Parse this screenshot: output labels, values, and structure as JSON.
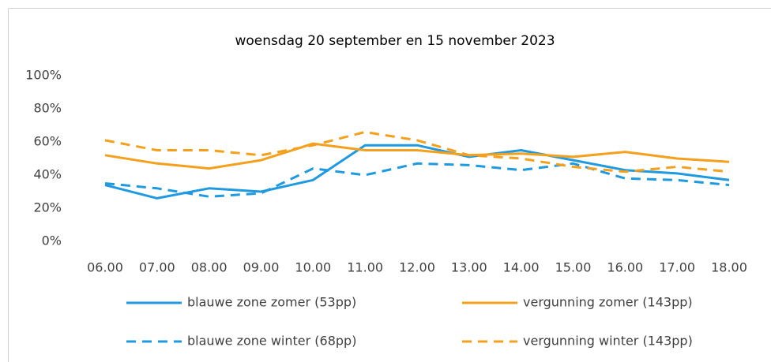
{
  "chart_data": {
    "type": "line",
    "title": "woensdag 20 september en 15 november 2023",
    "categories": [
      "06.00",
      "07.00",
      "08.00",
      "09.00",
      "10.00",
      "11.00",
      "12.00",
      "13.00",
      "14.00",
      "15.00",
      "16.00",
      "17.00",
      "18.00"
    ],
    "series": [
      {
        "name": "blauwe zone zomer (53pp)",
        "color": "#1f9ae0",
        "dash": false,
        "values": [
          34,
          26,
          32,
          30,
          37,
          58,
          58,
          51,
          55,
          49,
          43,
          41,
          37
        ]
      },
      {
        "name": "vergunning zomer (143pp)",
        "color": "#f5a01c",
        "dash": false,
        "values": [
          52,
          47,
          44,
          49,
          59,
          55,
          55,
          52,
          53,
          51,
          54,
          50,
          48
        ]
      },
      {
        "name": "blauwe zone winter (68pp)",
        "color": "#1f9ae0",
        "dash": true,
        "values": [
          35,
          32,
          27,
          29,
          44,
          40,
          47,
          46,
          43,
          47,
          38,
          37,
          34
        ]
      },
      {
        "name": "vergunning winter (143pp)",
        "color": "#f5a01c",
        "dash": true,
        "values": [
          61,
          55,
          55,
          52,
          58,
          66,
          61,
          52,
          50,
          45,
          42,
          45,
          42
        ]
      }
    ],
    "ylim": [
      0,
      100
    ],
    "yticks": [
      {
        "value": 0,
        "label": "0%"
      },
      {
        "value": 20,
        "label": "20%"
      },
      {
        "value": 40,
        "label": "40%"
      },
      {
        "value": 60,
        "label": "60%"
      },
      {
        "value": 80,
        "label": "80%"
      },
      {
        "value": 100,
        "label": "100%"
      }
    ],
    "grid": false
  }
}
